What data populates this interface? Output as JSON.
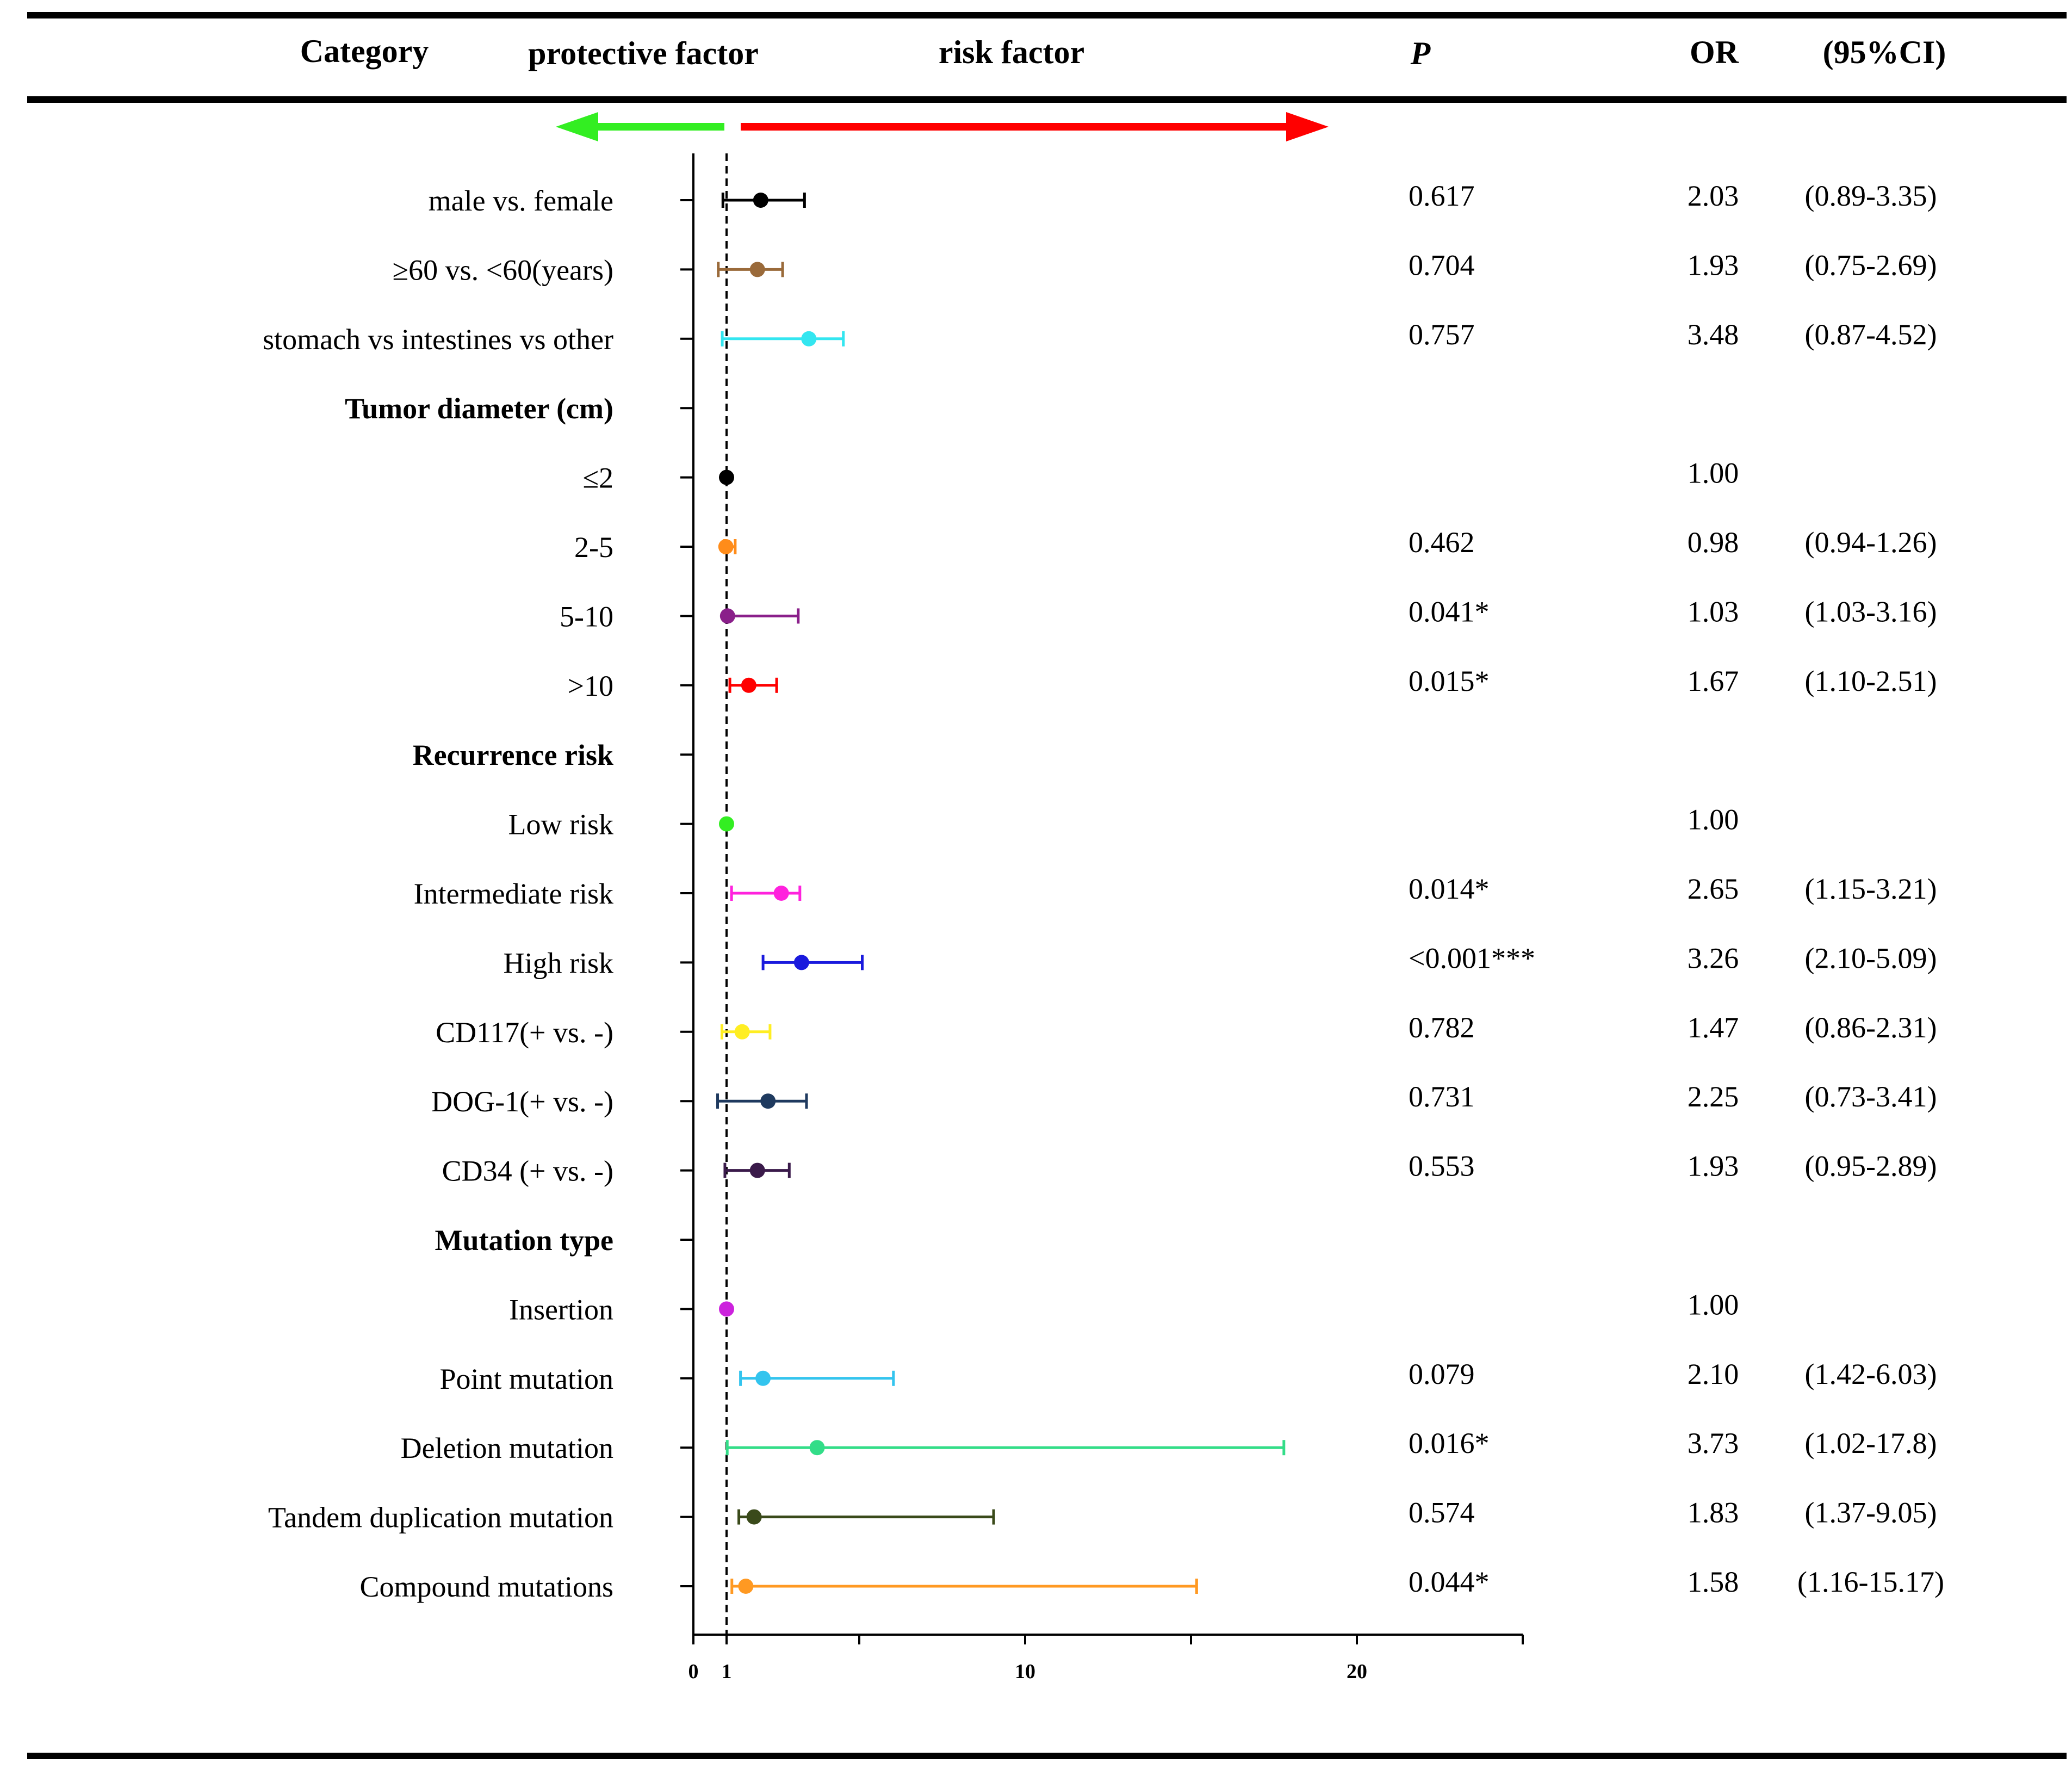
{
  "chart_data": {
    "type": "forest",
    "header": {
      "category": "Category",
      "protective": "protective factor",
      "risk": "risk factor",
      "p": "P",
      "or": "OR",
      "ci": "(95%CI)"
    },
    "x_ticks": [
      {
        "value": 0,
        "label": "0"
      },
      {
        "value": 1,
        "label": "1"
      },
      {
        "value": 10,
        "label": "10"
      },
      {
        "value": 20,
        "label": "20"
      }
    ],
    "minor_ticks": [
      5,
      15,
      25
    ],
    "xlim": [
      0,
      25
    ],
    "reference_value": 1,
    "rows": [
      {
        "label": "male vs. female",
        "bold": false,
        "p": "0.617",
        "or": "2.03",
        "ci": "(0.89-3.35)",
        "point": 2.03,
        "low": 0.89,
        "high": 3.35,
        "color": "#000000"
      },
      {
        "label": "≥60 vs. <60(years)",
        "bold": false,
        "p": "0.704",
        "or": "1.93",
        "ci": "(0.75-2.69)",
        "point": 1.93,
        "low": 0.75,
        "high": 2.69,
        "color": "#9a6a3a"
      },
      {
        "label": "stomach vs intestines vs other",
        "bold": false,
        "p": "0.757",
        "or": "3.48",
        "ci": "(0.87-4.52)",
        "point": 3.48,
        "low": 0.87,
        "high": 4.52,
        "color": "#33e6f0"
      },
      {
        "label": "Tumor diameter (cm)",
        "bold": true,
        "p": "",
        "or": "",
        "ci": "",
        "point": null,
        "low": null,
        "high": null,
        "color": "#000000"
      },
      {
        "label": "≤2",
        "bold": false,
        "p": "",
        "or": "1.00",
        "ci": "",
        "point": 1.0,
        "low": null,
        "high": null,
        "color": "#000000"
      },
      {
        "label": "2-5",
        "bold": false,
        "p": "0.462",
        "or": "0.98",
        "ci": "(0.94-1.26)",
        "point": 0.98,
        "low": 0.94,
        "high": 1.26,
        "color": "#ff8c1a"
      },
      {
        "label": "5-10",
        "bold": false,
        "p": "0.041*",
        "or": "1.03",
        "ci": "(1.03-3.16)",
        "point": 1.03,
        "low": 1.03,
        "high": 3.16,
        "color": "#8a1f8a"
      },
      {
        "label": ">10",
        "bold": false,
        "p": "0.015*",
        "or": "1.67",
        "ci": "(1.10-2.51)",
        "point": 1.67,
        "low": 1.1,
        "high": 2.51,
        "color": "#ff0000"
      },
      {
        "label": "Recurrence risk",
        "bold": true,
        "p": "",
        "or": "",
        "ci": "",
        "point": null,
        "low": null,
        "high": null,
        "color": "#000000"
      },
      {
        "label": "Low risk",
        "bold": false,
        "p": "",
        "or": "1.00",
        "ci": "",
        "point": 1.0,
        "low": null,
        "high": null,
        "color": "#33ee22"
      },
      {
        "label": "Intermediate risk",
        "bold": false,
        "p": "0.014*",
        "or": "2.65",
        "ci": "(1.15-3.21)",
        "point": 2.65,
        "low": 1.15,
        "high": 3.21,
        "color": "#ff22dd"
      },
      {
        "label": "High risk",
        "bold": false,
        "p": "<0.001***",
        "or": "3.26",
        "ci": "(2.10-5.09)",
        "point": 3.26,
        "low": 2.1,
        "high": 5.09,
        "color": "#1a1add"
      },
      {
        "label": "CD117(+ vs. -)",
        "bold": false,
        "p": "0.782",
        "or": "1.47",
        "ci": "(0.86-2.31)",
        "point": 1.47,
        "low": 0.86,
        "high": 2.31,
        "color": "#ffee22"
      },
      {
        "label": "DOG-1(+ vs. -)",
        "bold": false,
        "p": "0.731",
        "or": "2.25",
        "ci": "(0.73-3.41)",
        "point": 2.25,
        "low": 0.73,
        "high": 3.41,
        "color": "#1f3a5f"
      },
      {
        "label": "CD34 (+ vs. -)",
        "bold": false,
        "p": "0.553",
        "or": "1.93",
        "ci": "(0.95-2.89)",
        "point": 1.93,
        "low": 0.95,
        "high": 2.89,
        "color": "#3a1a4a"
      },
      {
        "label": "Mutation type",
        "bold": true,
        "p": "",
        "or": "",
        "ci": "",
        "point": null,
        "low": null,
        "high": null,
        "color": "#000000"
      },
      {
        "label": "Insertion",
        "bold": false,
        "p": "",
        "or": "1.00",
        "ci": "",
        "point": 1.0,
        "low": null,
        "high": null,
        "color": "#cc22dd"
      },
      {
        "label": "Point mutation",
        "bold": false,
        "p": "0.079",
        "or": "2.10",
        "ci": "(1.42-6.03)",
        "point": 2.1,
        "low": 1.42,
        "high": 6.03,
        "color": "#33c4ee"
      },
      {
        "label": "Deletion mutation",
        "bold": false,
        "p": "0.016*",
        "or": "3.73",
        "ci": "(1.02-17.8)",
        "point": 3.73,
        "low": 1.02,
        "high": 17.8,
        "color": "#33dd88"
      },
      {
        "label": "Tandem duplication mutation",
        "bold": false,
        "p": "0.574",
        "or": "1.83",
        "ci": "(1.37-9.05)",
        "point": 1.83,
        "low": 1.37,
        "high": 9.05,
        "color": "#3a4a1a"
      },
      {
        "label": "Compound mutations",
        "bold": false,
        "p": "0.044*",
        "or": "1.58",
        "ci": "(1.16-15.17)",
        "point": 1.58,
        "low": 1.16,
        "high": 15.17,
        "color": "#ff9922"
      }
    ],
    "colors": {
      "protective_arrow": "#33ee22",
      "risk_arrow": "#ff0000"
    }
  }
}
